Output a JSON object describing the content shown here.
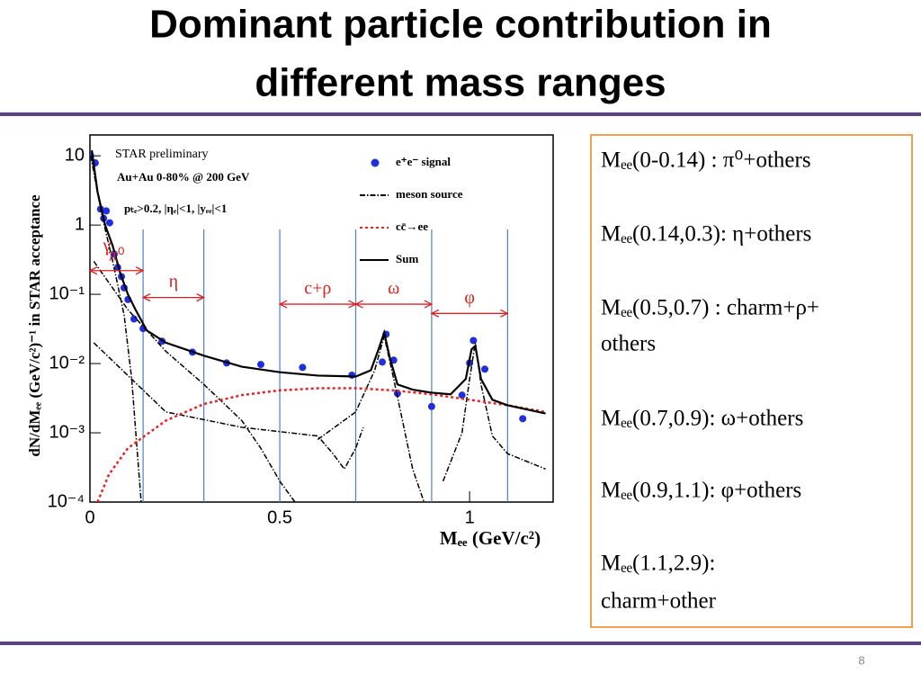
{
  "title": [
    "Dominant particle contribution in",
    "different mass ranges"
  ],
  "chart_data": {
    "type": "scatter",
    "xlabel": "Mₑₑ (GeV/c²)",
    "ylabel": "dN/dMₑₑ (GeV/c²)⁻¹  in STAR acceptance",
    "xlim": [
      0,
      1.22
    ],
    "ylim": [
      0.0001,
      20
    ],
    "yscale": "log",
    "xticks": [
      0,
      0.5,
      1
    ],
    "yticks": [
      10,
      1,
      {
        "value": 0.1,
        "label": "10⁻¹"
      },
      {
        "value": 0.01,
        "label": "10⁻²"
      },
      {
        "value": 0.001,
        "label": "10⁻³"
      },
      {
        "value": 0.0001,
        "label": "10⁻⁴"
      }
    ],
    "texts": [
      "STAR preliminary",
      "Au+Au 0-80% @ 200 GeV",
      "pₜₑ>0.2, |ηₑ|<1, |yₑₑ|<1"
    ],
    "series": [
      {
        "name": "e⁺e⁻ signal",
        "type": "scatter",
        "color": "#1f2fe0",
        "x": [
          0.002,
          0.014,
          0.028,
          0.036,
          0.043,
          0.052,
          0.064,
          0.073,
          0.083,
          0.09,
          0.1,
          0.116,
          0.14,
          0.19,
          0.27,
          0.36,
          0.45,
          0.56,
          0.69,
          0.77,
          0.78,
          0.8,
          0.81,
          0.9,
          0.98,
          1.0,
          1.01,
          1.04,
          1.14
        ],
        "values": [
          10,
          7.9,
          1.7,
          1.25,
          1.6,
          1.08,
          0.38,
          0.245,
          0.18,
          0.124,
          0.084,
          0.044,
          0.032,
          0.021,
          0.0146,
          0.0102,
          0.0097,
          0.0088,
          0.0068,
          0.0105,
          0.0265,
          0.0112,
          0.0037,
          0.0024,
          0.0035,
          0.0102,
          0.0215,
          0.0083,
          0.0016
        ]
      },
      {
        "name": "meson source",
        "type": "line",
        "color": "#000000",
        "dash": "dashdot",
        "x": [
          0.002,
          0.03,
          0.06,
          0.09,
          0.11,
          0.125,
          0.135,
          null,
          0.01,
          0.1,
          0.2,
          0.3,
          0.4,
          0.45,
          0.5,
          0.54,
          null,
          0.01,
          0.2,
          0.4,
          0.6,
          0.64,
          0.67,
          0.7,
          0.72,
          null,
          0.6,
          0.7,
          0.75,
          0.775,
          0.8,
          0.85,
          0.88,
          null,
          0.93,
          0.98,
          1.0,
          1.015,
          1.03,
          1.06,
          1.1,
          1.2
        ],
        "values": [
          10,
          1.5,
          0.3,
          0.05,
          0.006,
          0.0005,
          0.0001,
          null,
          0.3,
          0.06,
          0.015,
          0.005,
          0.0015,
          0.0006,
          0.0002,
          0.0001,
          null,
          0.02,
          0.002,
          0.0012,
          0.0009,
          0.0005,
          0.0003,
          0.0006,
          0.0012,
          null,
          0.0008,
          0.002,
          0.008,
          0.025,
          0.006,
          0.0003,
          0.0001,
          null,
          0.0002,
          0.001,
          0.006,
          0.02,
          0.005,
          0.0009,
          0.0005,
          0.0003
        ]
      },
      {
        "name": "cc̄→ee",
        "type": "line",
        "color": "#e8231e",
        "dash": "dot",
        "x": [
          0.02,
          0.05,
          0.1,
          0.2,
          0.3,
          0.4,
          0.5,
          0.6,
          0.7,
          0.8,
          0.9,
          1.0,
          1.1,
          1.2
        ],
        "values": [
          0.0001,
          0.00025,
          0.0006,
          0.0015,
          0.0026,
          0.0035,
          0.0041,
          0.0044,
          0.0044,
          0.0041,
          0.0036,
          0.003,
          0.0025,
          0.002
        ]
      },
      {
        "name": "Sum",
        "type": "line",
        "color": "#000000",
        "dash": "solid",
        "x": [
          0.005,
          0.02,
          0.04,
          0.06,
          0.08,
          0.1,
          0.12,
          0.15,
          0.2,
          0.3,
          0.4,
          0.5,
          0.6,
          0.7,
          0.74,
          0.76,
          0.775,
          0.79,
          0.81,
          0.85,
          0.9,
          0.95,
          0.99,
          1.005,
          1.015,
          1.03,
          1.06,
          1.1,
          1.2
        ],
        "values": [
          12,
          3,
          1,
          0.5,
          0.2,
          0.1,
          0.06,
          0.03,
          0.02,
          0.013,
          0.009,
          0.0075,
          0.0067,
          0.0065,
          0.008,
          0.016,
          0.028,
          0.012,
          0.005,
          0.0042,
          0.0038,
          0.0036,
          0.006,
          0.016,
          0.018,
          0.006,
          0.003,
          0.0025,
          0.0019
        ]
      }
    ],
    "region_bounds": [
      0.14,
      0.3,
      0.5,
      0.7,
      0.9,
      1.1
    ],
    "annotations": [
      {
        "label": "γ",
        "x": 0.045,
        "y": 0.3
      },
      {
        "label": "π⁰",
        "x": [
          0,
          0.14
        ],
        "y": 0.22
      },
      {
        "label": "η",
        "x": [
          0.14,
          0.3
        ],
        "y": 0.09
      },
      {
        "label": "c+ρ",
        "x": [
          0.5,
          0.7
        ],
        "y": 0.072
      },
      {
        "label": "ω",
        "x": [
          0.7,
          0.9
        ],
        "y": 0.072
      },
      {
        "label": "φ",
        "x": [
          0.9,
          1.1
        ],
        "y": 0.053
      }
    ]
  },
  "notes": [
    [
      "Mₑₑ(0-0.14) : π⁰+others"
    ],
    [
      "Mₑₑ(0.14,0.3): η+others"
    ],
    [
      "Mₑₑ(0.5,0.7) : charm+ρ+",
      "others"
    ],
    [
      " Mₑₑ(0.7,0.9): ω+others"
    ],
    [
      "Mₑₑ(0.9,1.1): φ+others"
    ],
    [
      "Mₑₑ(1.1,2.9):",
      "charm+other"
    ]
  ],
  "page_number": "8"
}
